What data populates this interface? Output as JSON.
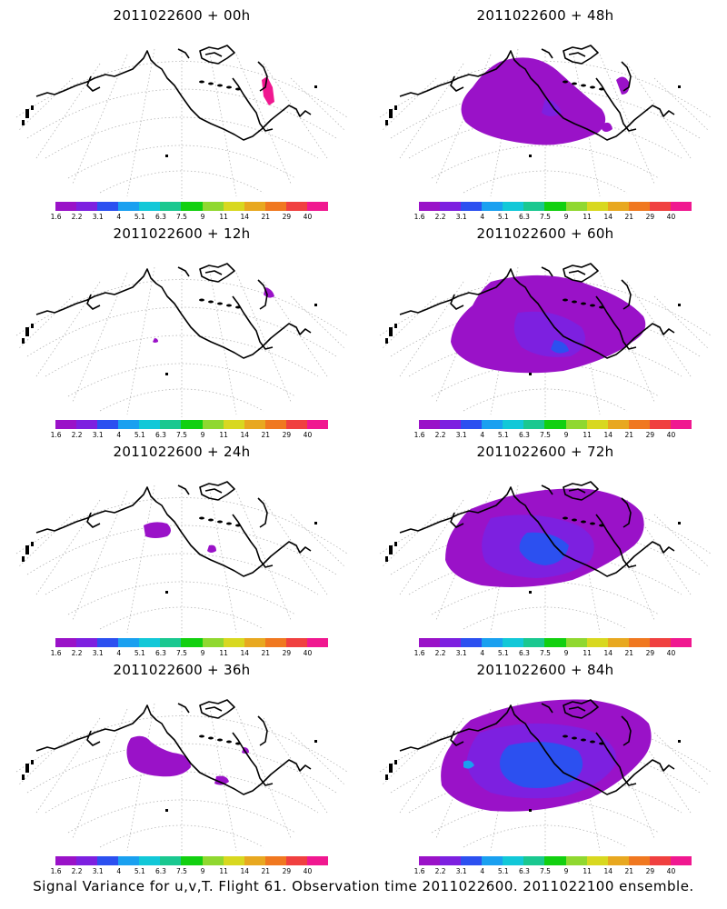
{
  "colorbar": {
    "colors": [
      "#9a12c8",
      "#7d20e0",
      "#2c50f0",
      "#1aa0f0",
      "#12c8d8",
      "#1ac890",
      "#12d010",
      "#90d830",
      "#d8d820",
      "#e8a820",
      "#f07820",
      "#f04040",
      "#f01890"
    ],
    "ticks": [
      "1.6",
      "2.2",
      "3.1",
      "4",
      "5.1",
      "6.3",
      "7.5",
      "9",
      "11",
      "14",
      "21",
      "29",
      "40"
    ]
  },
  "panels": [
    {
      "title": "2011022600 + 00h"
    },
    {
      "title": "2011022600 + 48h"
    },
    {
      "title": "2011022600 + 12h"
    },
    {
      "title": "2011022600 + 60h"
    },
    {
      "title": "2011022600 + 24h"
    },
    {
      "title": "2011022600 + 72h"
    },
    {
      "title": "2011022600 + 36h"
    },
    {
      "title": "2011022600 + 84h"
    }
  ],
  "footer": "Signal Variance for u,v,T. Flight 61. Observation time 2011022600. 2011022100 ensemble."
}
